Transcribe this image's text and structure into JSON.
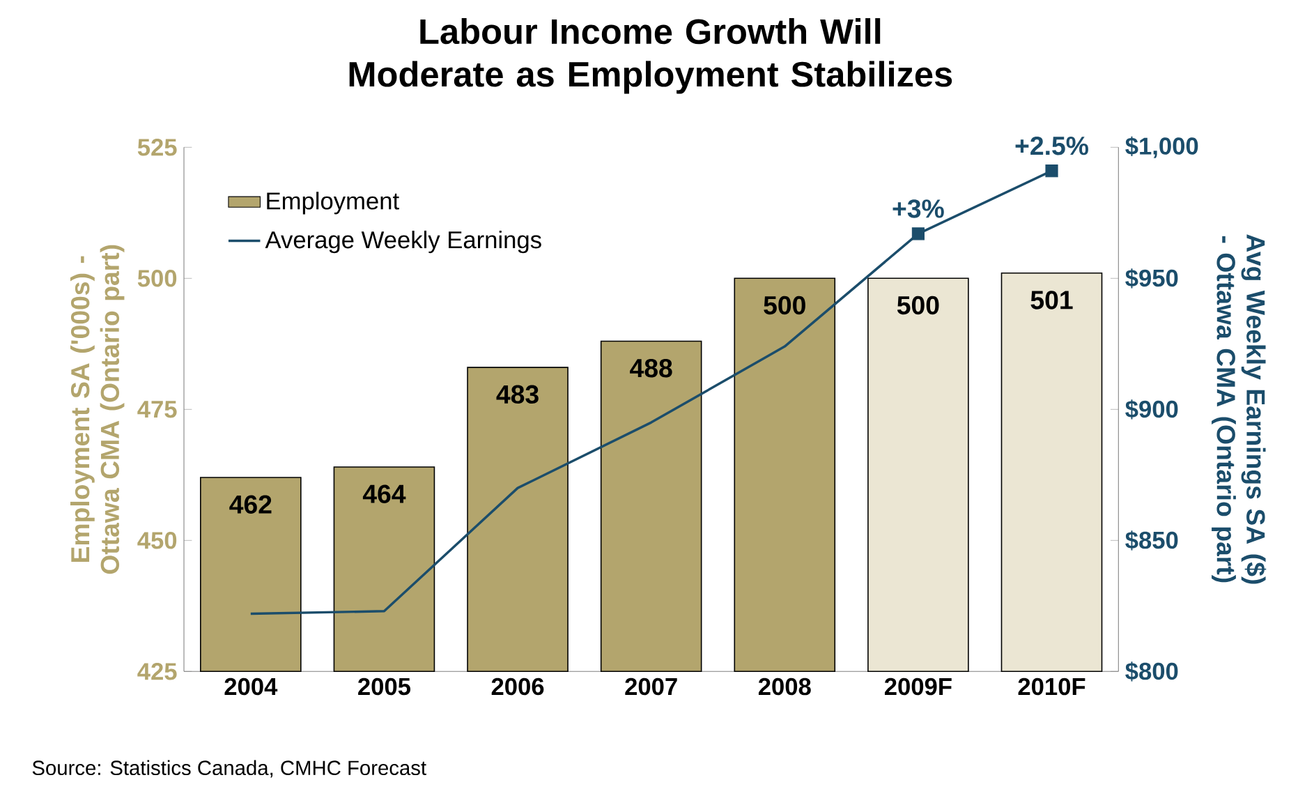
{
  "chart_data": {
    "type": "bar",
    "title": "Labour Income Growth Will Moderate as Employment Stabilizes",
    "categories": [
      "2004",
      "2005",
      "2006",
      "2007",
      "2008",
      "2009F",
      "2010F"
    ],
    "series": [
      {
        "name": "Employment",
        "color": "#b3a56d",
        "colors": [
          "#b3a56d",
          "#b3a56d",
          "#b3a56d",
          "#b3a56d",
          "#b3a56d",
          "#ebe6d3",
          "#ebe6d3"
        ],
        "values": [
          462,
          464,
          483,
          488,
          500,
          500,
          501
        ],
        "value_labels": [
          "462",
          "464",
          "483",
          "488",
          "500",
          "500",
          "501"
        ]
      },
      {
        "name": "Average Weekly Earnings",
        "type": "line",
        "axis": "y2",
        "color": "#1b4d6b",
        "marker": "none",
        "values": [
          822,
          823,
          870,
          895,
          924,
          967,
          991
        ]
      },
      {
        "type": "scatter",
        "axis": "y2",
        "color": "#1b4d6b",
        "marker": "square",
        "values": [
          null,
          null,
          null,
          null,
          null,
          967,
          991
        ]
      }
    ],
    "ylabel": "Employment SA ('000s) - Ottawa CMA (Ontario part)",
    "y2label": "Avg Weekly Earnings SA ($) - Ottawa CMA (Ontario part)",
    "ylim": [
      425,
      525
    ],
    "yticks": [
      425,
      450,
      475,
      500,
      525
    ],
    "y2lim": [
      800,
      1000
    ],
    "y2ticks": [
      {
        "value": 800,
        "label": "$800"
      },
      {
        "value": 850,
        "label": "$850"
      },
      {
        "value": 900,
        "label": "$900"
      },
      {
        "value": 950,
        "label": "$950"
      },
      {
        "value": 1000,
        "label": "$1,000"
      }
    ],
    "legend": "top left",
    "annotations": [
      "+3%",
      "+2.5%",
      "Source: Statistics Canada, CMHC Forecast"
    ]
  }
}
